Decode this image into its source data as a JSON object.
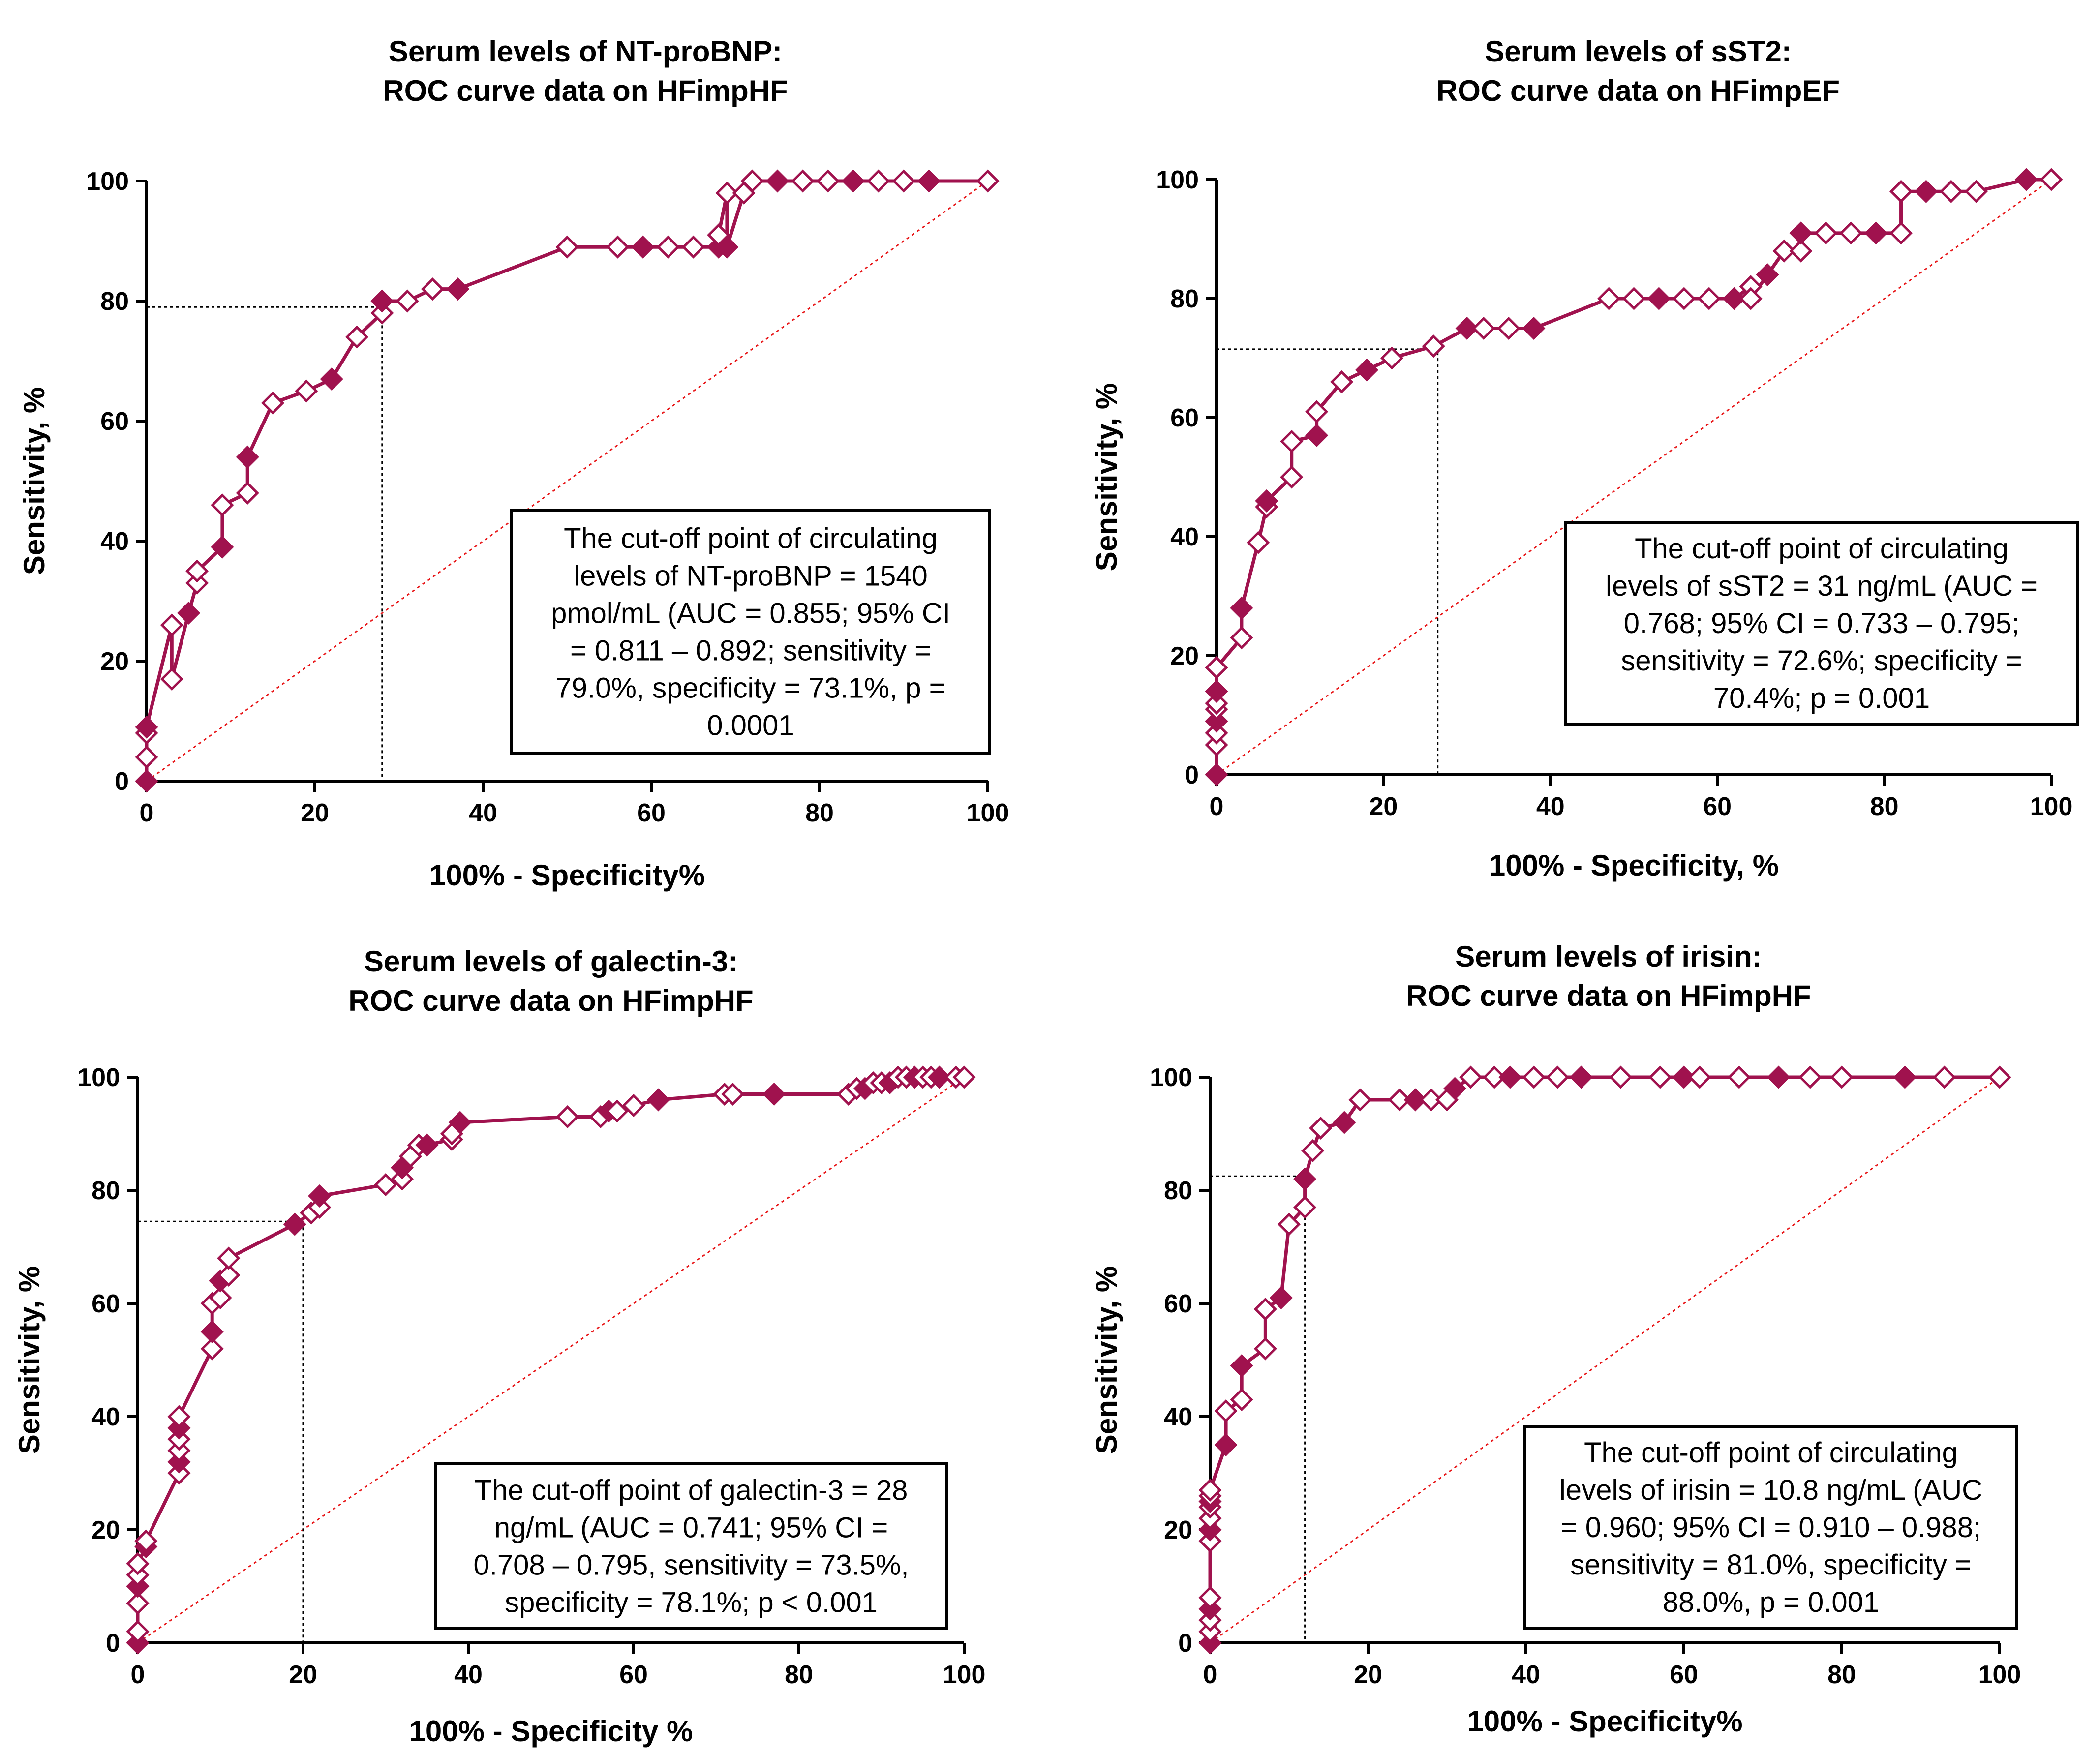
{
  "colors": {
    "curve": "#A0124E",
    "marker_fill": "#A0124E",
    "reference": "#E8181A",
    "axis": "#000000"
  },
  "chart_data": [
    {
      "type": "line",
      "title": [
        "Serum levels of NT-proBNP:",
        "ROC curve data on HFimpHF"
      ],
      "xlabel": "100% - Specificity%",
      "ylabel": "Sensitivity, %",
      "xlim": [
        0,
        100
      ],
      "ylim": [
        0,
        100
      ],
      "xticks": [
        0,
        20,
        40,
        60,
        80,
        100
      ],
      "yticks": [
        0,
        20,
        40,
        60,
        80,
        100
      ],
      "cutoff": {
        "x": 28,
        "y": 79
      },
      "annotation": [
        "The cut-off point of circulating",
        "levels of NT-proBNP = 1540",
        "pmol/mL (AUC = 0.855; 95% CI",
        "= 0.811 – 0.892; sensitivity =",
        "79.0%, specificity = 73.1%, p =",
        "0.0001"
      ],
      "series": [
        {
          "name": "ROC",
          "x": [
            0,
            0,
            0,
            0,
            3,
            3,
            5,
            6,
            6,
            9,
            9,
            12,
            12,
            15,
            19,
            22,
            25,
            28,
            28,
            31,
            34,
            37,
            50,
            56,
            59,
            62,
            65,
            68,
            68,
            69,
            69,
            71,
            72,
            75,
            78,
            81,
            84,
            87,
            90,
            93,
            100
          ],
          "y": [
            0,
            4,
            8,
            9,
            26,
            17,
            28,
            33,
            35,
            39,
            46,
            48,
            54,
            63,
            65,
            67,
            74,
            78,
            80,
            80,
            82,
            82,
            89,
            89,
            89,
            89,
            89,
            89,
            91,
            98,
            89,
            98,
            100,
            100,
            100,
            100,
            100,
            100,
            100,
            100,
            100
          ]
        }
      ]
    },
    {
      "type": "line",
      "title": [
        "Serum levels of sST2:",
        "ROC curve data on HFimpEF"
      ],
      "xlabel": "100% - Specificity, %",
      "ylabel": "Sensitivity, %",
      "xlim": [
        0,
        100
      ],
      "ylim": [
        0,
        100
      ],
      "xticks": [
        0,
        20,
        40,
        60,
        80,
        100
      ],
      "yticks": [
        0,
        20,
        40,
        60,
        80,
        100
      ],
      "cutoff": {
        "x": 26.5,
        "y": 71.5
      },
      "annotation": [
        "The cut-off point of circulating",
        "levels of sST2 = 31 ng/mL  (AUC =",
        "0.768; 95% CI = 0.733 – 0.795;",
        "sensitivity = 72.6%; specificity =",
        "70.4%; p = 0.001"
      ],
      "series": [
        {
          "name": "ROC",
          "x": [
            0,
            0,
            0,
            0,
            0,
            0,
            0,
            0,
            3,
            3,
            5,
            6,
            6,
            9,
            9,
            12,
            12,
            15,
            18,
            21,
            26,
            30,
            32,
            35,
            38,
            47,
            50,
            53,
            56,
            59,
            62,
            64,
            64,
            66,
            68,
            70,
            70,
            73,
            76,
            79,
            82,
            82,
            85,
            88,
            91,
            97,
            100
          ],
          "y": [
            0,
            5,
            7,
            9,
            11,
            12,
            14,
            18,
            23,
            28,
            39,
            45,
            46,
            50,
            56,
            57,
            61,
            66,
            68,
            70,
            72,
            75,
            75,
            75,
            75,
            80,
            80,
            80,
            80,
            80,
            80,
            82,
            80,
            84,
            88,
            88,
            91,
            91,
            91,
            91,
            91,
            98,
            98,
            98,
            98,
            100,
            100
          ]
        }
      ]
    },
    {
      "type": "line",
      "title": [
        "Serum levels of galectin-3:",
        "ROC curve data on HFimpHF"
      ],
      "xlabel": "100% - Specificity %",
      "ylabel": "Sensitivity, %",
      "xlim": [
        0,
        100
      ],
      "ylim": [
        0,
        100
      ],
      "xticks": [
        0,
        20,
        40,
        60,
        80,
        100
      ],
      "yticks": [
        0,
        20,
        40,
        60,
        80,
        100
      ],
      "cutoff": {
        "x": 20,
        "y": 74.5
      },
      "annotation": [
        "The cut-off point of galectin-3 = 28",
        "ng/mL (AUC = 0.741; 95% CI =",
        "0.708 – 0.795, sensitivity = 73.5%,",
        "specificity = 78.1%; p < 0.001"
      ],
      "series": [
        {
          "name": "ROC",
          "x": [
            0,
            0,
            0,
            0,
            0,
            0,
            1,
            1,
            5,
            5,
            5,
            5,
            5,
            5,
            9,
            9,
            9,
            10,
            10,
            11,
            11,
            19,
            21,
            22,
            22,
            30,
            32,
            32,
            33,
            34,
            35,
            38,
            38,
            39,
            52,
            56,
            57,
            58,
            60,
            63,
            71,
            72,
            77,
            86,
            87,
            88,
            89,
            90,
            91,
            92,
            93,
            94,
            95,
            96,
            97,
            99,
            100
          ],
          "y": [
            0,
            2,
            7,
            10,
            12,
            14,
            17,
            18,
            30,
            32,
            34,
            36,
            38,
            40,
            52,
            55,
            60,
            61,
            64,
            65,
            68,
            74,
            76,
            77,
            79,
            81,
            82,
            84,
            86,
            88,
            88,
            89,
            90,
            92,
            93,
            93,
            94,
            94,
            95,
            96,
            97,
            97,
            97,
            97,
            98,
            98,
            99,
            99,
            99,
            100,
            100,
            100,
            100,
            100,
            100,
            100,
            100
          ]
        }
      ]
    },
    {
      "type": "line",
      "title": [
        "Serum levels of irisin:",
        "ROC curve data on HFimpHF"
      ],
      "xlabel": "100% - Specificity%",
      "ylabel": "Sensitivity, %",
      "xlim": [
        0,
        100
      ],
      "ylim": [
        0,
        100
      ],
      "xticks": [
        0,
        20,
        40,
        60,
        80,
        100
      ],
      "yticks": [
        0,
        20,
        40,
        60,
        80,
        100
      ],
      "cutoff": {
        "x": 12,
        "y": 82.5
      },
      "annotation": [
        "The cut-off point of circulating",
        "levels of irisin = 10.8 ng/mL (AUC",
        "= 0.960; 95% CI = 0.910 – 0.988;",
        "sensitivity = 81.0%, specificity =",
        "88.0%, p = 0.001"
      ],
      "series": [
        {
          "name": "ROC",
          "x": [
            0,
            0,
            0,
            0,
            0,
            0,
            0,
            0,
            0,
            0,
            0,
            0,
            2,
            2,
            4,
            4,
            7,
            7,
            9,
            10,
            12,
            12,
            13,
            14,
            17,
            19,
            24,
            26,
            28,
            30,
            31,
            33,
            36,
            38,
            41,
            44,
            47,
            52,
            57,
            60,
            62,
            67,
            72,
            76,
            80,
            88,
            93,
            100
          ],
          "y": [
            0,
            2,
            4,
            6,
            8,
            18,
            20,
            22,
            24,
            25,
            26,
            27,
            35,
            41,
            43,
            49,
            52,
            59,
            61,
            74,
            77,
            82,
            87,
            91,
            92,
            96,
            96,
            96,
            96,
            96,
            98,
            100,
            100,
            100,
            100,
            100,
            100,
            100,
            100,
            100,
            100,
            100,
            100,
            100,
            100,
            100,
            100,
            100
          ]
        }
      ]
    }
  ]
}
